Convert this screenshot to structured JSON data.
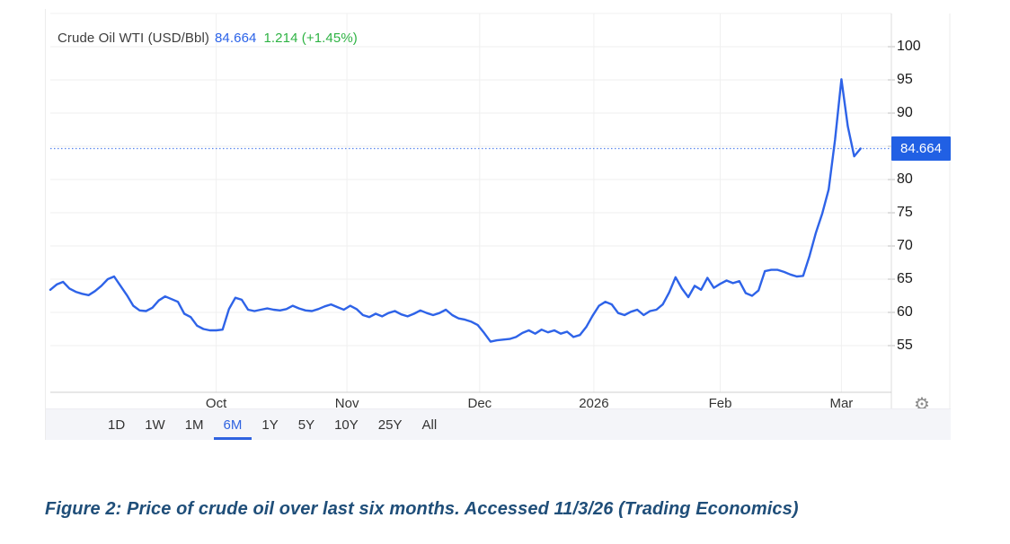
{
  "chart": {
    "title": "Crude Oil WTI (USD/Bbl)",
    "price": "84.664",
    "change_text": "1.214 (+1.45%)"
  },
  "toolbar": {
    "ranges": [
      "1D",
      "1W",
      "1M",
      "6M",
      "1Y",
      "5Y",
      "10Y",
      "25Y",
      "All"
    ],
    "selected": "6M"
  },
  "icons": {
    "gear": "⚙"
  },
  "colors": {
    "line": "#2e63e8",
    "badge": "#2160e4",
    "price_text": "#2b63e8",
    "change_green": "#2fb344",
    "selected_range": "#2f63e0",
    "dotted_line": "#5c88ee",
    "gridline": "#efefef",
    "axis_line": "#cfcfcf",
    "caption_blue": "#1f4e79"
  },
  "caption": "Figure 2: Price of crude oil over last six months. Accessed 11/3/26 (Trading Economics)",
  "chart_data": {
    "type": "line",
    "title": "Crude Oil WTI (USD/Bbl)",
    "legend": [],
    "xlabel": "",
    "ylabel": "USD/Bbl",
    "ylim": [
      48,
      105
    ],
    "grid": true,
    "last_value": 84.664,
    "dotted_line_value": 84.664,
    "change": 1.214,
    "change_pct": 1.45,
    "y_labels": [
      100,
      95,
      90,
      80,
      75,
      70,
      65,
      60,
      55
    ],
    "y_gridlines": [
      100,
      95,
      90,
      85,
      80,
      75,
      70,
      65,
      60,
      55
    ],
    "x_ticks": [
      {
        "pos": 26,
        "label": "Oct"
      },
      {
        "pos": 46.5,
        "label": "Nov"
      },
      {
        "pos": 67.3,
        "label": "Dec"
      },
      {
        "pos": 85.2,
        "label": "2026"
      },
      {
        "pos": 105,
        "label": "Feb"
      },
      {
        "pos": 124,
        "label": "Mar"
      }
    ],
    "series": [
      {
        "name": "Crude Oil WTI",
        "values": [
          63.4,
          64.2,
          64.6,
          63.6,
          63.1,
          62.8,
          62.6,
          63.2,
          64.0,
          65.0,
          65.4,
          64.0,
          62.6,
          61.0,
          60.3,
          60.2,
          60.7,
          61.8,
          62.4,
          62.0,
          61.6,
          59.8,
          59.3,
          58.0,
          57.5,
          57.3,
          57.3,
          57.4,
          60.5,
          62.2,
          61.9,
          60.4,
          60.2,
          60.4,
          60.6,
          60.4,
          60.3,
          60.5,
          61.0,
          60.6,
          60.3,
          60.2,
          60.5,
          60.9,
          61.2,
          60.8,
          60.4,
          61.0,
          60.5,
          59.6,
          59.3,
          59.8,
          59.4,
          59.9,
          60.2,
          59.7,
          59.4,
          59.8,
          60.3,
          59.9,
          59.6,
          59.9,
          60.4,
          59.6,
          59.1,
          58.9,
          58.6,
          58.1,
          56.9,
          55.6,
          55.8,
          55.9,
          56.0,
          56.3,
          56.9,
          57.3,
          56.8,
          57.4,
          57.0,
          57.3,
          56.8,
          57.1,
          56.3,
          56.6,
          57.8,
          59.5,
          61.0,
          61.6,
          61.2,
          59.9,
          59.6,
          60.1,
          60.4,
          59.6,
          60.2,
          60.4,
          61.2,
          63.0,
          65.3,
          63.6,
          62.3,
          64.0,
          63.4,
          65.2,
          63.7,
          64.3,
          64.8,
          64.4,
          64.7,
          62.9,
          62.5,
          63.3,
          66.2,
          66.4,
          66.4,
          66.1,
          65.7,
          65.4,
          65.5,
          68.5,
          72.0,
          74.9,
          78.5,
          86.0,
          95.1,
          88.0,
          83.5,
          84.664
        ]
      }
    ]
  }
}
